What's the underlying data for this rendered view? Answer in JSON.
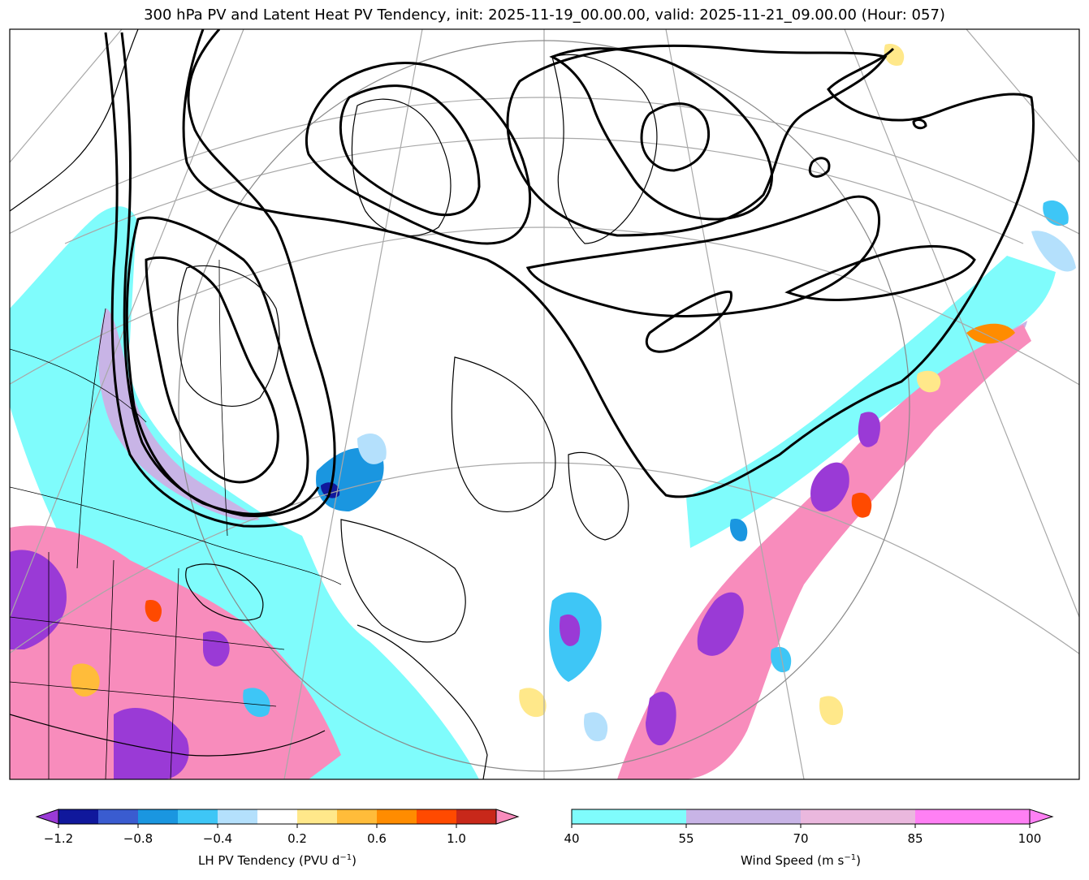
{
  "title": "300 hPa PV and Latent Heat PV Tendency, init: 2025-11-19_00.00.00, valid: 2025-11-21_09.00.00 (Hour: 057)",
  "colors": {
    "pv_contour": "#000000",
    "coast": "#000000",
    "grid": "#9a9a9a",
    "wind_40_55": "#7ffcfc",
    "wind_55_70": "#c8b4e6",
    "wind_70_85": "#eab8de",
    "wind_85_100": "#ff80f4"
  },
  "lh_colorbar": {
    "label": "LH PV Tendency (PVU d",
    "label_sup": "−1",
    "label_end": ")",
    "ticks": [
      "−1.2",
      "−0.8",
      "−0.4",
      "0.2",
      "0.6",
      "1.0"
    ],
    "colors": [
      "#9a3ad6",
      "#10189c",
      "#3a5cd0",
      "#1a96e0",
      "#3ec6f6",
      "#b4e0fc",
      "#ffffff",
      "#ffe88a",
      "#ffbc3a",
      "#ff8c00",
      "#ff4a00",
      "#c8281a",
      "#f88cbc"
    ]
  },
  "wind_colorbar": {
    "label": "Wind Speed (m s",
    "label_sup": "−1",
    "label_end": ")",
    "ticks": [
      "40",
      "55",
      "70",
      "85",
      "100"
    ],
    "colors": [
      "#7ffcfc",
      "#c8b4e6",
      "#eab8de",
      "#ff80f4"
    ]
  }
}
